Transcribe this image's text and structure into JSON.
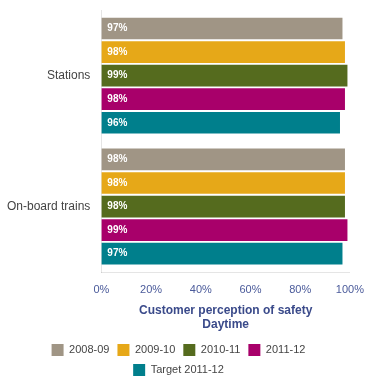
{
  "chart_data": {
    "type": "bar",
    "orientation": "horizontal",
    "categories": [
      "Stations",
      "On-board trains"
    ],
    "series": [
      {
        "name": "2008-09",
        "color": "#a09585",
        "values": [
          97,
          98
        ],
        "value_labels": [
          "97%",
          "98%"
        ]
      },
      {
        "name": "2009-10",
        "color": "#e6a818",
        "values": [
          98,
          98
        ],
        "value_labels": [
          "98%",
          "98%"
        ]
      },
      {
        "name": "2010-11",
        "color": "#556b1e",
        "values": [
          99,
          98
        ],
        "value_labels": [
          "99%",
          "98%"
        ]
      },
      {
        "name": "2011-12",
        "color": "#a8006a",
        "values": [
          98,
          99
        ],
        "value_labels": [
          "98%",
          "99%"
        ]
      },
      {
        "name": "Target 2011-12",
        "color": "#007f8c",
        "values": [
          96,
          97
        ],
        "value_labels": [
          "96%",
          "97%"
        ]
      }
    ],
    "xlabel": [
      "Customer perception of safety",
      "Daytime"
    ],
    "xlim": [
      0,
      100
    ],
    "xticks": [
      {
        "value": 0,
        "label": "0%"
      },
      {
        "value": 20,
        "label": "20%"
      },
      {
        "value": 40,
        "label": "40%"
      },
      {
        "value": 60,
        "label": "60%"
      },
      {
        "value": 80,
        "label": "80%"
      },
      {
        "value": 100,
        "label": "100%"
      }
    ],
    "grid": false,
    "data_labels": true,
    "legend": "bottom"
  }
}
